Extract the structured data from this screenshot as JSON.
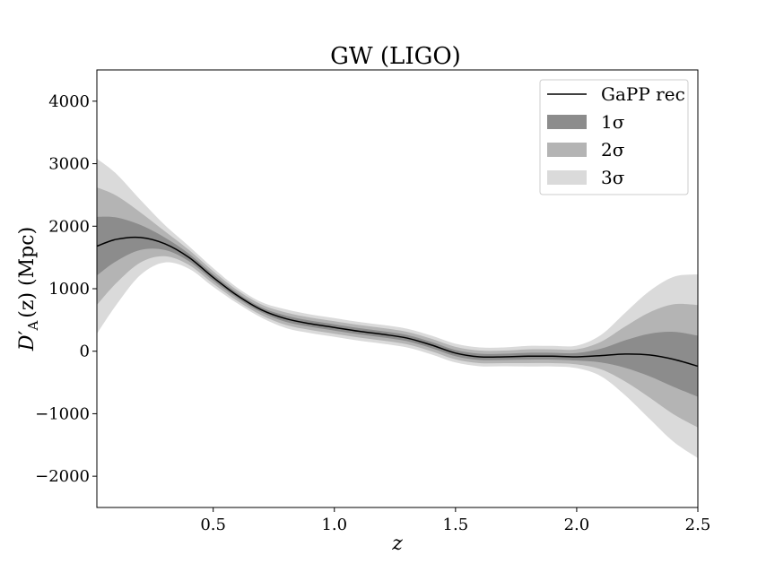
{
  "chart_data": {
    "type": "line",
    "title": "GW (LIGO)",
    "xlabel": "z",
    "ylabel_main": "D",
    "ylabel_prime": "′",
    "ylabel_sub": "A",
    "ylabel_rest": "(z) (Mpc)",
    "xlim": [
      0.02,
      2.5
    ],
    "ylim": [
      -2500,
      4500
    ],
    "xticks": [
      0.5,
      1.0,
      1.5,
      2.0,
      2.5
    ],
    "xtick_labels": [
      "0.5",
      "1.0",
      "1.5",
      "2.0",
      "2.5"
    ],
    "yticks": [
      -2000,
      -1000,
      0,
      1000,
      2000,
      3000,
      4000
    ],
    "ytick_labels": [
      "−2000",
      "−1000",
      "0",
      "1000",
      "2000",
      "3000",
      "4000"
    ],
    "grid": false,
    "legend_position": "top-right",
    "legend": [
      {
        "label": "GaPP rec",
        "kind": "line",
        "color": "#000000"
      },
      {
        "label": "1σ",
        "kind": "patch",
        "color": "#8c8c8c"
      },
      {
        "label": "2σ",
        "kind": "patch",
        "color": "#b4b4b4"
      },
      {
        "label": "3σ",
        "kind": "patch",
        "color": "#dadada"
      }
    ],
    "x": [
      0.02,
      0.1,
      0.2,
      0.3,
      0.4,
      0.5,
      0.6,
      0.7,
      0.8,
      0.9,
      1.0,
      1.1,
      1.2,
      1.3,
      1.4,
      1.5,
      1.6,
      1.7,
      1.8,
      1.9,
      2.0,
      2.1,
      2.2,
      2.3,
      2.4,
      2.5
    ],
    "mean": [
      1680,
      1790,
      1820,
      1720,
      1500,
      1180,
      890,
      660,
      520,
      440,
      380,
      320,
      270,
      210,
      100,
      -30,
      -90,
      -90,
      -80,
      -80,
      -90,
      -70,
      -45,
      -60,
      -130,
      -240
    ],
    "sigma1": [
      470,
      350,
      200,
      100,
      60,
      50,
      40,
      40,
      50,
      50,
      50,
      50,
      50,
      50,
      50,
      50,
      50,
      50,
      55,
      55,
      60,
      110,
      220,
      340,
      440,
      490
    ],
    "sigma2": [
      940,
      700,
      400,
      200,
      120,
      100,
      85,
      85,
      100,
      100,
      100,
      100,
      100,
      100,
      100,
      100,
      100,
      100,
      110,
      110,
      120,
      220,
      440,
      680,
      880,
      980
    ],
    "sigma3": [
      1400,
      1050,
      600,
      300,
      180,
      150,
      125,
      125,
      150,
      150,
      150,
      150,
      150,
      150,
      150,
      150,
      150,
      150,
      165,
      165,
      180,
      330,
      660,
      1020,
      1320,
      1470
    ],
    "colors": {
      "mean_line": "#000000",
      "band1": "#8c8c8c",
      "band2": "#b4b4b4",
      "band3": "#dadada"
    }
  }
}
